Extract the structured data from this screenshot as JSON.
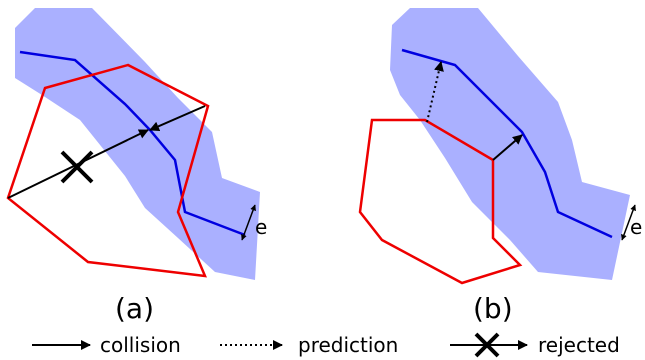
{
  "panels": {
    "a": {
      "caption": "(a)",
      "width_label": "e"
    },
    "b": {
      "caption": "(b)",
      "width_label": "e"
    }
  },
  "legend": {
    "collision": "collision",
    "prediction": "prediction",
    "rejected": "rejected"
  },
  "colors": {
    "band": "#aab0ff",
    "path": "#0000e0",
    "polygon": "#ee0000",
    "arrow": "#000000"
  }
}
